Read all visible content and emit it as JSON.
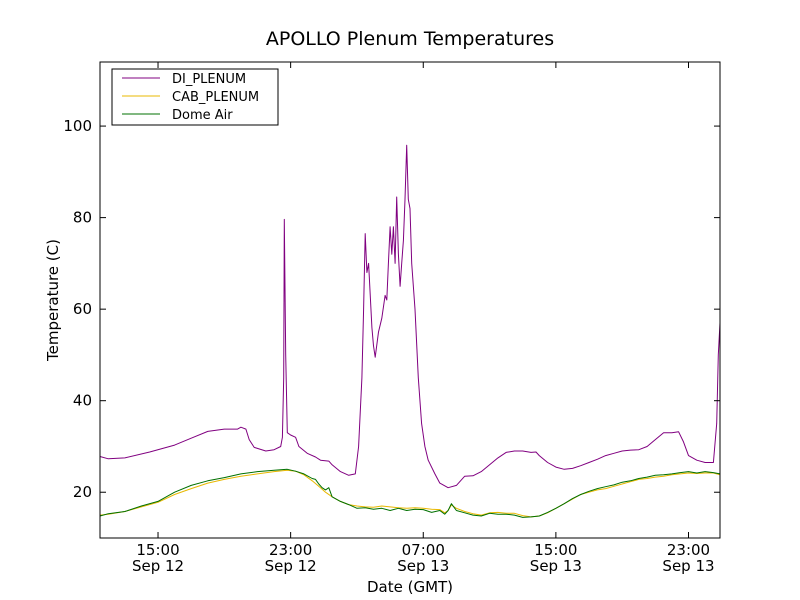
{
  "chart_data": {
    "type": "line",
    "title": "APOLLO Plenum Temperatures",
    "xlabel": "Date (GMT)",
    "ylabel": "Temperature (C)",
    "x_unit": "hours since Sep 12 11:30 GMT",
    "xlim": [
      0,
      37.4
    ],
    "ylim": [
      10,
      114
    ],
    "y_ticks": [
      20,
      40,
      60,
      80,
      100
    ],
    "x_ticks": [
      {
        "x": 3.5,
        "time": "15:00",
        "date": "Sep 12"
      },
      {
        "x": 11.5,
        "time": "23:00",
        "date": "Sep 12"
      },
      {
        "x": 19.5,
        "time": "07:00",
        "date": "Sep 13"
      },
      {
        "x": 27.5,
        "time": "15:00",
        "date": "Sep 13"
      },
      {
        "x": 35.5,
        "time": "23:00",
        "date": "Sep 13"
      }
    ],
    "legend_position": "top-left",
    "series": [
      {
        "name": "DI_PLENUM",
        "color": "#800080",
        "points": [
          [
            0,
            27.8
          ],
          [
            0.5,
            27.3
          ],
          [
            1.5,
            27.5
          ],
          [
            3,
            28.8
          ],
          [
            4.5,
            30.3
          ],
          [
            5.5,
            31.8
          ],
          [
            6.5,
            33.3
          ],
          [
            7.5,
            33.8
          ],
          [
            8.3,
            33.8
          ],
          [
            8.5,
            34.2
          ],
          [
            8.8,
            33.8
          ],
          [
            9,
            31.5
          ],
          [
            9.3,
            29.8
          ],
          [
            10,
            29
          ],
          [
            10.5,
            29.3
          ],
          [
            10.9,
            30
          ],
          [
            11,
            32
          ],
          [
            11.08,
            45
          ],
          [
            11.12,
            79.6
          ],
          [
            11.2,
            50
          ],
          [
            11.3,
            33
          ],
          [
            11.5,
            32.5
          ],
          [
            11.8,
            32
          ],
          [
            12,
            30
          ],
          [
            12.5,
            28.5
          ],
          [
            13,
            27.7
          ],
          [
            13.3,
            27
          ],
          [
            13.8,
            26.8
          ],
          [
            14,
            26
          ],
          [
            14.5,
            24.5
          ],
          [
            15,
            23.7
          ],
          [
            15.4,
            24
          ],
          [
            15.6,
            30
          ],
          [
            15.8,
            45
          ],
          [
            15.9,
            60
          ],
          [
            16,
            76.5
          ],
          [
            16.1,
            68
          ],
          [
            16.2,
            70
          ],
          [
            16.4,
            56
          ],
          [
            16.5,
            52
          ],
          [
            16.6,
            49.5
          ],
          [
            16.8,
            55
          ],
          [
            17,
            58
          ],
          [
            17.2,
            63
          ],
          [
            17.3,
            62
          ],
          [
            17.4,
            70
          ],
          [
            17.5,
            78
          ],
          [
            17.6,
            72
          ],
          [
            17.7,
            78
          ],
          [
            17.8,
            70
          ],
          [
            17.9,
            84.5
          ],
          [
            18,
            72
          ],
          [
            18.1,
            65
          ],
          [
            18.2,
            70
          ],
          [
            18.3,
            75
          ],
          [
            18.4,
            84
          ],
          [
            18.5,
            95.8
          ],
          [
            18.6,
            84
          ],
          [
            18.7,
            82
          ],
          [
            18.8,
            70
          ],
          [
            19,
            60
          ],
          [
            19.2,
            45
          ],
          [
            19.4,
            35
          ],
          [
            19.6,
            30
          ],
          [
            19.8,
            27
          ],
          [
            20.2,
            24
          ],
          [
            20.5,
            22
          ],
          [
            21,
            21
          ],
          [
            21.5,
            21.5
          ],
          [
            22,
            23.5
          ],
          [
            22.5,
            23.6
          ],
          [
            23,
            24.5
          ],
          [
            23.5,
            26
          ],
          [
            24,
            27.5
          ],
          [
            24.5,
            28.7
          ],
          [
            25,
            29
          ],
          [
            25.5,
            29
          ],
          [
            26,
            28.7
          ],
          [
            26.3,
            28.8
          ],
          [
            26.5,
            28
          ],
          [
            27,
            26.5
          ],
          [
            27.5,
            25.5
          ],
          [
            28,
            25
          ],
          [
            28.5,
            25.2
          ],
          [
            29,
            25.8
          ],
          [
            29.5,
            26.5
          ],
          [
            30,
            27.2
          ],
          [
            30.5,
            28
          ],
          [
            31,
            28.5
          ],
          [
            31.5,
            29
          ],
          [
            32,
            29.2
          ],
          [
            32.5,
            29.3
          ],
          [
            33,
            30
          ],
          [
            33.5,
            31.5
          ],
          [
            34,
            33
          ],
          [
            34.5,
            33
          ],
          [
            34.9,
            33.2
          ],
          [
            35.2,
            31
          ],
          [
            35.5,
            28
          ],
          [
            36,
            27
          ],
          [
            36.5,
            26.5
          ],
          [
            37,
            26.5
          ],
          [
            37.2,
            35
          ],
          [
            37.3,
            50
          ],
          [
            37.4,
            57
          ]
        ]
      },
      {
        "name": "CAB_PLENUM",
        "color": "#e8b800",
        "points": [
          [
            0,
            15
          ],
          [
            0.5,
            15.2
          ],
          [
            1.5,
            15.8
          ],
          [
            2.5,
            16.8
          ],
          [
            3.5,
            17.8
          ],
          [
            4.5,
            19.5
          ],
          [
            5.5,
            20.8
          ],
          [
            6.5,
            22
          ],
          [
            7.5,
            22.8
          ],
          [
            8.5,
            23.5
          ],
          [
            9.5,
            24
          ],
          [
            10.5,
            24.5
          ],
          [
            11.3,
            24.8
          ],
          [
            11.8,
            24.6
          ],
          [
            12.3,
            23.8
          ],
          [
            12.8,
            22.5
          ],
          [
            13.3,
            21
          ],
          [
            13.6,
            20
          ],
          [
            14,
            19
          ],
          [
            14.5,
            18
          ],
          [
            15,
            17.3
          ],
          [
            15.5,
            17
          ],
          [
            16,
            16.8
          ],
          [
            16.5,
            16.7
          ],
          [
            17,
            17
          ],
          [
            17.5,
            16.8
          ],
          [
            18,
            16.6
          ],
          [
            18.5,
            16.5
          ],
          [
            19,
            16.6
          ],
          [
            19.5,
            16.5
          ],
          [
            20,
            16.3
          ],
          [
            20.5,
            16.2
          ],
          [
            20.8,
            15.5
          ],
          [
            21,
            16
          ],
          [
            21.2,
            17.2
          ],
          [
            21.5,
            16.5
          ],
          [
            22,
            15.8
          ],
          [
            22.5,
            15.3
          ],
          [
            23,
            15
          ],
          [
            23.5,
            15.5
          ],
          [
            24,
            15.6
          ],
          [
            24.5,
            15.4
          ],
          [
            25,
            15.4
          ],
          [
            25.5,
            14.9
          ],
          [
            26,
            14.6
          ],
          [
            26.5,
            14.8
          ],
          [
            27,
            15.5
          ],
          [
            27.5,
            16.5
          ],
          [
            28,
            17.5
          ],
          [
            28.5,
            18.5
          ],
          [
            29,
            19.5
          ],
          [
            29.5,
            20
          ],
          [
            30,
            20.5
          ],
          [
            30.5,
            20.8
          ],
          [
            31,
            21.3
          ],
          [
            31.5,
            21.8
          ],
          [
            32,
            22.3
          ],
          [
            32.5,
            22.8
          ],
          [
            33,
            23
          ],
          [
            33.5,
            23.3
          ],
          [
            34,
            23.5
          ],
          [
            34.5,
            23.8
          ],
          [
            35,
            24
          ],
          [
            35.5,
            24.2
          ],
          [
            36,
            24.1
          ],
          [
            36.5,
            24.2
          ],
          [
            37,
            24.2
          ],
          [
            37.4,
            23.8
          ]
        ]
      },
      {
        "name": "Dome Air",
        "color": "#007000",
        "points": [
          [
            0,
            14.8
          ],
          [
            0.5,
            15.3
          ],
          [
            1.5,
            15.8
          ],
          [
            2.5,
            17
          ],
          [
            3.5,
            18
          ],
          [
            4.5,
            20
          ],
          [
            5.5,
            21.5
          ],
          [
            6.5,
            22.5
          ],
          [
            7.5,
            23.2
          ],
          [
            8.5,
            24
          ],
          [
            9.5,
            24.5
          ],
          [
            10.5,
            24.8
          ],
          [
            11.3,
            25
          ],
          [
            11.8,
            24.6
          ],
          [
            12.3,
            24
          ],
          [
            12.8,
            23
          ],
          [
            13,
            22.8
          ],
          [
            13.2,
            21.8
          ],
          [
            13.4,
            21
          ],
          [
            13.6,
            20.5
          ],
          [
            13.8,
            21
          ],
          [
            14,
            19
          ],
          [
            14.5,
            18
          ],
          [
            15,
            17.3
          ],
          [
            15.5,
            16.5
          ],
          [
            16,
            16.6
          ],
          [
            16.5,
            16.3
          ],
          [
            17,
            16.5
          ],
          [
            17.5,
            16
          ],
          [
            18,
            16.5
          ],
          [
            18.5,
            16
          ],
          [
            19,
            16.3
          ],
          [
            19.5,
            16.2
          ],
          [
            20,
            15.6
          ],
          [
            20.5,
            16
          ],
          [
            20.8,
            15.2
          ],
          [
            21,
            16
          ],
          [
            21.2,
            17.5
          ],
          [
            21.5,
            16
          ],
          [
            22,
            15.5
          ],
          [
            22.5,
            15
          ],
          [
            23,
            14.8
          ],
          [
            23.5,
            15.4
          ],
          [
            24,
            15.2
          ],
          [
            24.5,
            15.2
          ],
          [
            25,
            15
          ],
          [
            25.5,
            14.5
          ],
          [
            26,
            14.6
          ],
          [
            26.5,
            14.8
          ],
          [
            27,
            15.6
          ],
          [
            27.5,
            16.5
          ],
          [
            28,
            17.5
          ],
          [
            28.5,
            18.6
          ],
          [
            29,
            19.5
          ],
          [
            29.5,
            20.2
          ],
          [
            30,
            20.8
          ],
          [
            30.5,
            21.2
          ],
          [
            31,
            21.6
          ],
          [
            31.5,
            22.2
          ],
          [
            32,
            22.5
          ],
          [
            32.5,
            23
          ],
          [
            33,
            23.3
          ],
          [
            33.5,
            23.7
          ],
          [
            34,
            23.8
          ],
          [
            34.5,
            24
          ],
          [
            35,
            24.3
          ],
          [
            35.5,
            24.5
          ],
          [
            36,
            24.2
          ],
          [
            36.5,
            24.5
          ],
          [
            37,
            24.3
          ],
          [
            37.4,
            24
          ]
        ]
      }
    ]
  }
}
